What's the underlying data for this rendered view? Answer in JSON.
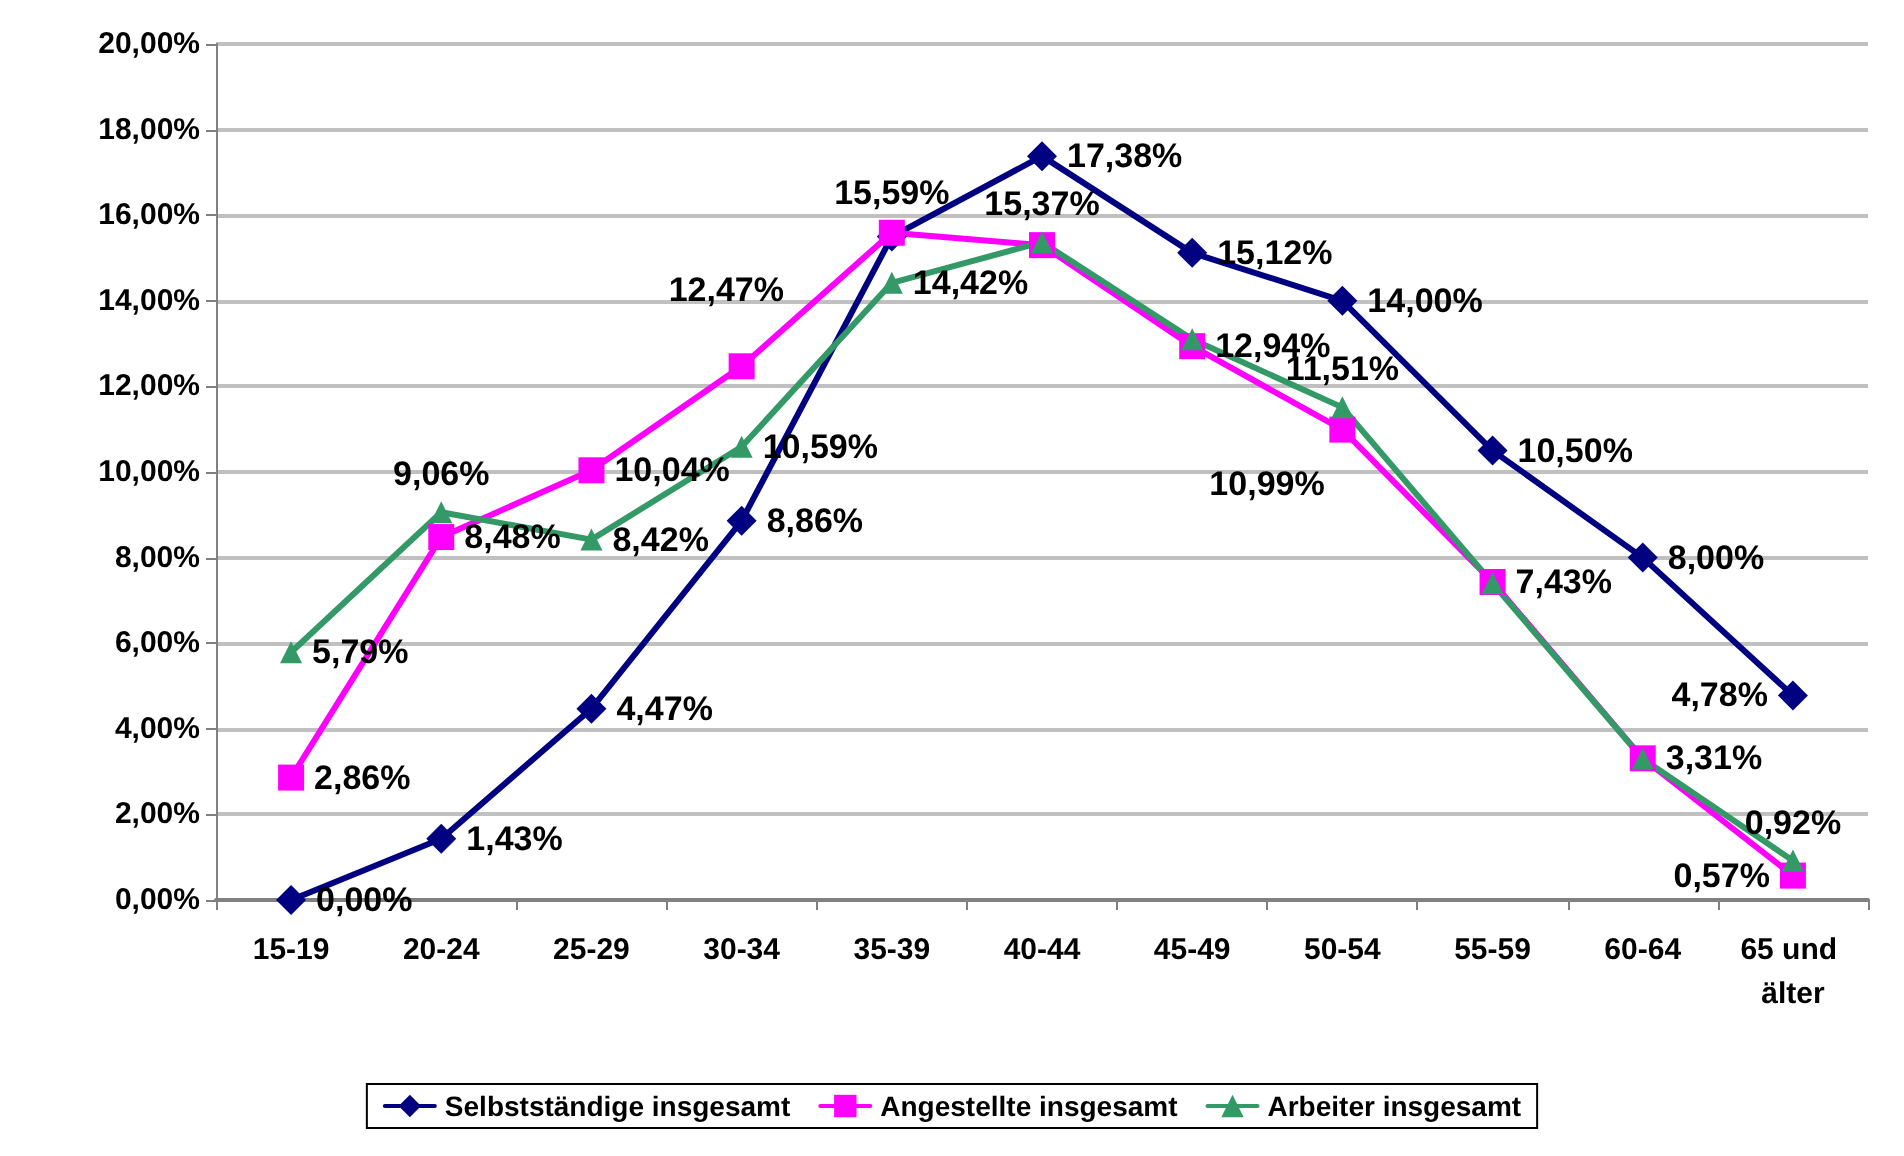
{
  "chart_data": {
    "type": "line",
    "categories": [
      "15-19",
      "20-24",
      "25-29",
      "30-34",
      "35-39",
      "40-44",
      "45-49",
      "50-54",
      "55-59",
      "60-64",
      "65 und älter"
    ],
    "series": [
      {
        "name": "Selbstständige insgesamt",
        "color": "#000080",
        "marker": "diamond",
        "values": [
          0,
          1.43,
          4.47,
          8.86,
          15.5,
          17.38,
          15.12,
          14,
          10.5,
          8,
          4.78
        ],
        "value_labels": [
          "0,00%",
          "1,43%",
          "4,47%",
          "8,86%",
          null,
          "17,38%",
          "15,12%",
          "14,00%",
          "10,50%",
          "8,00%",
          "4,78%"
        ]
      },
      {
        "name": "Angestellte insgesamt",
        "color": "#ff00ff",
        "marker": "square",
        "values": [
          2.86,
          8.48,
          10.04,
          12.47,
          15.59,
          15.3,
          12.94,
          10.99,
          7.43,
          3.31,
          0.57
        ],
        "value_labels": [
          "2,86%",
          "8,48%",
          "10,04%",
          "12,47%",
          "15,59%",
          null,
          "12,94%",
          "10,99%",
          "7,43%",
          "3,31%",
          "0,57%"
        ]
      },
      {
        "name": "Arbeiter insgesamt",
        "color": "#339966",
        "marker": "triangle",
        "values": [
          5.79,
          9.06,
          8.42,
          10.59,
          14.42,
          15.37,
          13.1,
          11.51,
          7.4,
          3.3,
          0.92
        ],
        "value_labels": [
          "5,79%",
          "9,06%",
          "8,42%",
          "10,59%",
          "14,42%",
          "15,37%",
          null,
          "11,51%",
          null,
          null,
          "0,92%"
        ]
      }
    ],
    "ylim": [
      0,
      20
    ],
    "yticks": [
      {
        "value": 0,
        "label": "0,00%"
      },
      {
        "value": 2,
        "label": "2,00%"
      },
      {
        "value": 4,
        "label": "4,00%"
      },
      {
        "value": 6,
        "label": "6,00%"
      },
      {
        "value": 8,
        "label": "8,00%"
      },
      {
        "value": 10,
        "label": "10,00%"
      },
      {
        "value": 12,
        "label": "12,00%"
      },
      {
        "value": 14,
        "label": "14,00%"
      },
      {
        "value": 16,
        "label": "16,00%"
      },
      {
        "value": 18,
        "label": "18,00%"
      },
      {
        "value": 20,
        "label": "20,00%"
      }
    ],
    "grid": "y",
    "legend": "bottom",
    "line_style": "solid"
  }
}
